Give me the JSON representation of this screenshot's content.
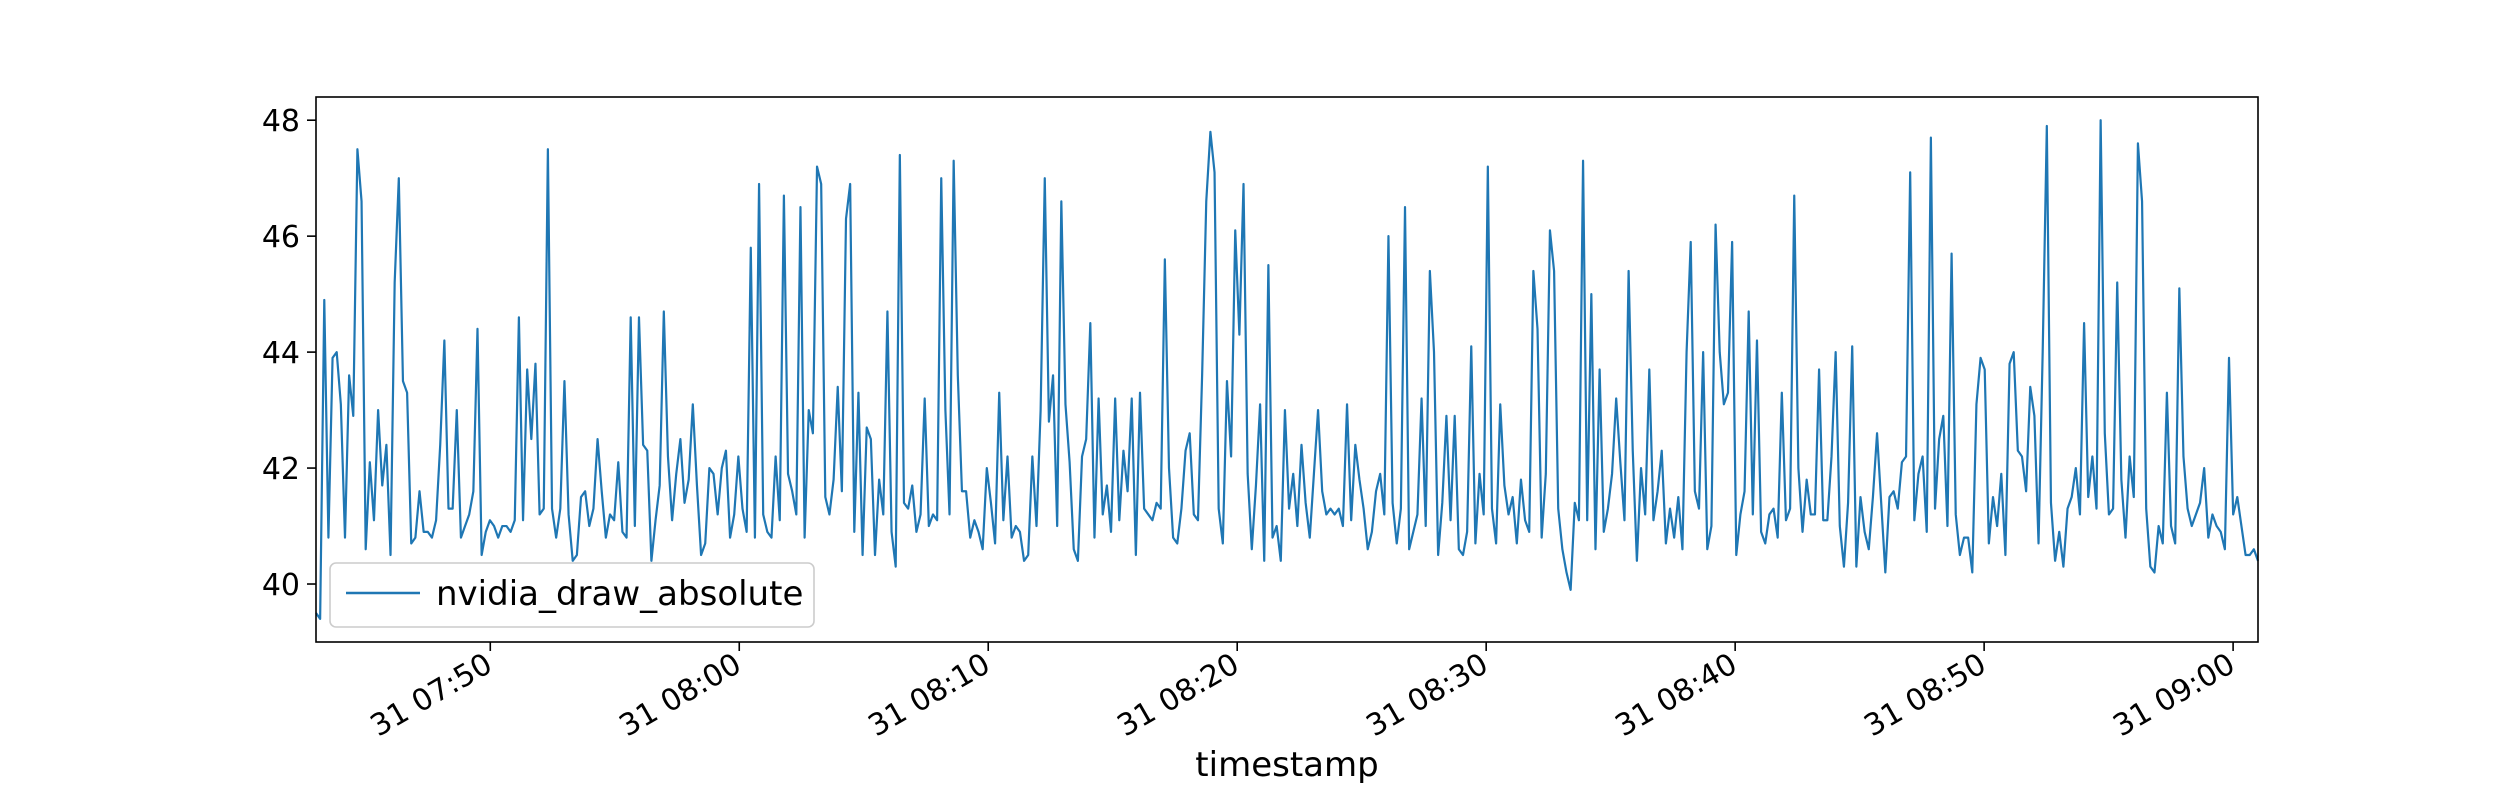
{
  "chart_data": {
    "type": "line",
    "title": "",
    "xlabel": "timestamp",
    "ylabel": "",
    "x_start": "2024-01-31 07:43:00",
    "x_end": "2024-01-31 09:01:00",
    "xlim": [
      "31 07:43",
      "31 09:01"
    ],
    "ylim": [
      39,
      48.4
    ],
    "x_ticks": [
      {
        "label": "31 07:50",
        "value": "07:50"
      },
      {
        "label": "31 08:00",
        "value": "08:00"
      },
      {
        "label": "31 08:10",
        "value": "08:10"
      },
      {
        "label": "31 08:20",
        "value": "08:20"
      },
      {
        "label": "31 08:30",
        "value": "08:30"
      },
      {
        "label": "31 08:40",
        "value": "08:40"
      },
      {
        "label": "31 08:50",
        "value": "08:50"
      },
      {
        "label": "31 09:00",
        "value": "09:00"
      }
    ],
    "y_ticks": [
      {
        "label": "40",
        "value": 40
      },
      {
        "label": "42",
        "value": 42
      },
      {
        "label": "44",
        "value": 44
      },
      {
        "label": "46",
        "value": 46
      },
      {
        "label": "48",
        "value": 48
      }
    ],
    "grid": false,
    "legend_position": "lower-left",
    "series": [
      {
        "name": "nvidia_draw_absolute",
        "color": "#1f77b4",
        "values": [
          39.5,
          39.4,
          44.9,
          40.8,
          43.9,
          44.0,
          43.1,
          40.8,
          43.6,
          42.9,
          47.5,
          46.6,
          40.6,
          42.1,
          41.1,
          43.0,
          41.7,
          42.4,
          40.5,
          45.2,
          47.0,
          43.5,
          43.3,
          40.7,
          40.8,
          41.6,
          40.9,
          40.9,
          40.8,
          41.1,
          42.4,
          44.2,
          41.3,
          41.3,
          43.0,
          40.8,
          41.0,
          41.2,
          41.6,
          44.4,
          40.5,
          40.9,
          41.1,
          41.0,
          40.8,
          41.0,
          41.0,
          40.9,
          41.1,
          44.6,
          41.1,
          43.7,
          42.5,
          43.8,
          41.2,
          41.3,
          47.5,
          41.3,
          40.8,
          41.3,
          43.5,
          41.2,
          40.4,
          40.5,
          41.5,
          41.6,
          41.0,
          41.3,
          42.5,
          41.6,
          40.8,
          41.2,
          41.1,
          42.1,
          40.9,
          40.8,
          44.6,
          41.0,
          44.6,
          42.4,
          42.3,
          40.4,
          41.1,
          41.7,
          44.7,
          42.2,
          41.1,
          41.9,
          42.5,
          41.4,
          41.8,
          43.1,
          41.7,
          40.5,
          40.7,
          42.0,
          41.9,
          41.2,
          42.0,
          42.3,
          40.8,
          41.2,
          42.2,
          41.3,
          40.9,
          45.8,
          40.8,
          46.9,
          41.2,
          40.9,
          40.8,
          42.2,
          41.1,
          46.7,
          41.9,
          41.6,
          41.2,
          46.5,
          40.8,
          43.0,
          42.6,
          47.2,
          46.9,
          41.5,
          41.2,
          41.8,
          43.4,
          41.6,
          46.3,
          46.9,
          40.9,
          43.3,
          40.5,
          42.7,
          42.5,
          40.5,
          41.8,
          41.2,
          44.7,
          40.9,
          40.3,
          47.4,
          41.4,
          41.3,
          41.7,
          40.9,
          41.2,
          43.2,
          41.0,
          41.2,
          41.1,
          47.0,
          43.0,
          41.2,
          47.3,
          43.6,
          41.6,
          41.6,
          40.8,
          41.1,
          40.9,
          40.6,
          42.0,
          41.4,
          40.7,
          43.3,
          41.1,
          42.2,
          40.8,
          41.0,
          40.9,
          40.4,
          40.5,
          42.2,
          41.0,
          43.0,
          47.0,
          42.8,
          43.6,
          41.0,
          46.6,
          43.1,
          42.1,
          40.6,
          40.4,
          42.2,
          42.5,
          44.5,
          40.8,
          43.2,
          41.2,
          41.7,
          40.9,
          43.2,
          41.1,
          42.3,
          41.6,
          43.2,
          40.5,
          43.3,
          41.3,
          41.2,
          41.1,
          41.4,
          41.3,
          45.6,
          42.0,
          40.8,
          40.7,
          41.3,
          42.3,
          42.6,
          41.2,
          41.1,
          43.6,
          46.6,
          47.8,
          47.1,
          41.3,
          40.7,
          43.5,
          42.2,
          46.1,
          44.3,
          46.9,
          41.9,
          40.6,
          41.7,
          43.1,
          40.4,
          45.5,
          40.8,
          41.0,
          40.4,
          43.0,
          41.3,
          41.9,
          41.0,
          42.4,
          41.4,
          40.8,
          41.9,
          43.0,
          41.6,
          41.2,
          41.3,
          41.2,
          41.3,
          41.0,
          43.1,
          41.1,
          42.4,
          41.8,
          41.3,
          40.6,
          40.9,
          41.6,
          41.9,
          41.2,
          46.0,
          41.4,
          40.7,
          41.3,
          46.5,
          40.6,
          40.9,
          41.2,
          43.2,
          41.0,
          45.4,
          44.0,
          40.5,
          41.4,
          42.9,
          41.1,
          42.9,
          40.6,
          40.5,
          40.9,
          44.1,
          40.7,
          41.9,
          41.2,
          47.2,
          41.3,
          40.7,
          43.1,
          41.7,
          41.2,
          41.5,
          40.7,
          41.8,
          41.1,
          40.9,
          45.4,
          44.4,
          40.8,
          41.9,
          46.1,
          45.4,
          41.3,
          40.6,
          40.2,
          39.9,
          41.4,
          41.1,
          47.3,
          41.1,
          45.0,
          40.6,
          43.7,
          40.9,
          41.3,
          41.9,
          43.2,
          42.1,
          41.1,
          45.4,
          42.3,
          40.4,
          42.0,
          41.2,
          43.7,
          41.1,
          41.6,
          42.3,
          40.7,
          41.3,
          40.8,
          41.5,
          40.6,
          44.0,
          45.9,
          41.6,
          41.3,
          44.0,
          40.6,
          41.0,
          46.2,
          44.0,
          43.1,
          43.3,
          45.9,
          40.5,
          41.2,
          41.6,
          44.7,
          41.2,
          44.2,
          40.9,
          40.7,
          41.2,
          41.3,
          40.8,
          43.3,
          41.1,
          41.3,
          46.7,
          42.0,
          40.9,
          41.8,
          41.2,
          41.2,
          43.7,
          41.1,
          41.1,
          42.2,
          44.0,
          41.0,
          40.3,
          41.4,
          44.1,
          40.3,
          41.5,
          40.9,
          40.6,
          41.5,
          42.6,
          41.4,
          40.2,
          41.5,
          41.6,
          41.3,
          42.1,
          42.2,
          47.1,
          41.1,
          41.9,
          42.2,
          40.9,
          47.7,
          41.3,
          42.5,
          42.9,
          41.0,
          45.7,
          41.2,
          40.5,
          40.8,
          40.8,
          40.2,
          43.1,
          43.9,
          43.7,
          40.7,
          41.5,
          41.0,
          41.9,
          40.5,
          43.8,
          44.0,
          42.3,
          42.2,
          41.6,
          43.4,
          42.9,
          40.7,
          44.0,
          47.9,
          41.4,
          40.4,
          40.9,
          40.3,
          41.3,
          41.5,
          42.0,
          41.2,
          44.5,
          41.5,
          42.2,
          41.3,
          48.0,
          42.6,
          41.2,
          41.3,
          45.2,
          41.8,
          40.8,
          42.2,
          41.5,
          47.6,
          46.6,
          41.3,
          40.3,
          40.2,
          41.0,
          40.7,
          43.3,
          41.0,
          40.7,
          45.1,
          42.2,
          41.3,
          41.0,
          41.2,
          41.4,
          42.0,
          40.8,
          41.2,
          41.0,
          40.9,
          40.6,
          43.9,
          41.2,
          41.5,
          41.0,
          40.5,
          40.5,
          40.6,
          40.4
        ]
      }
    ]
  }
}
